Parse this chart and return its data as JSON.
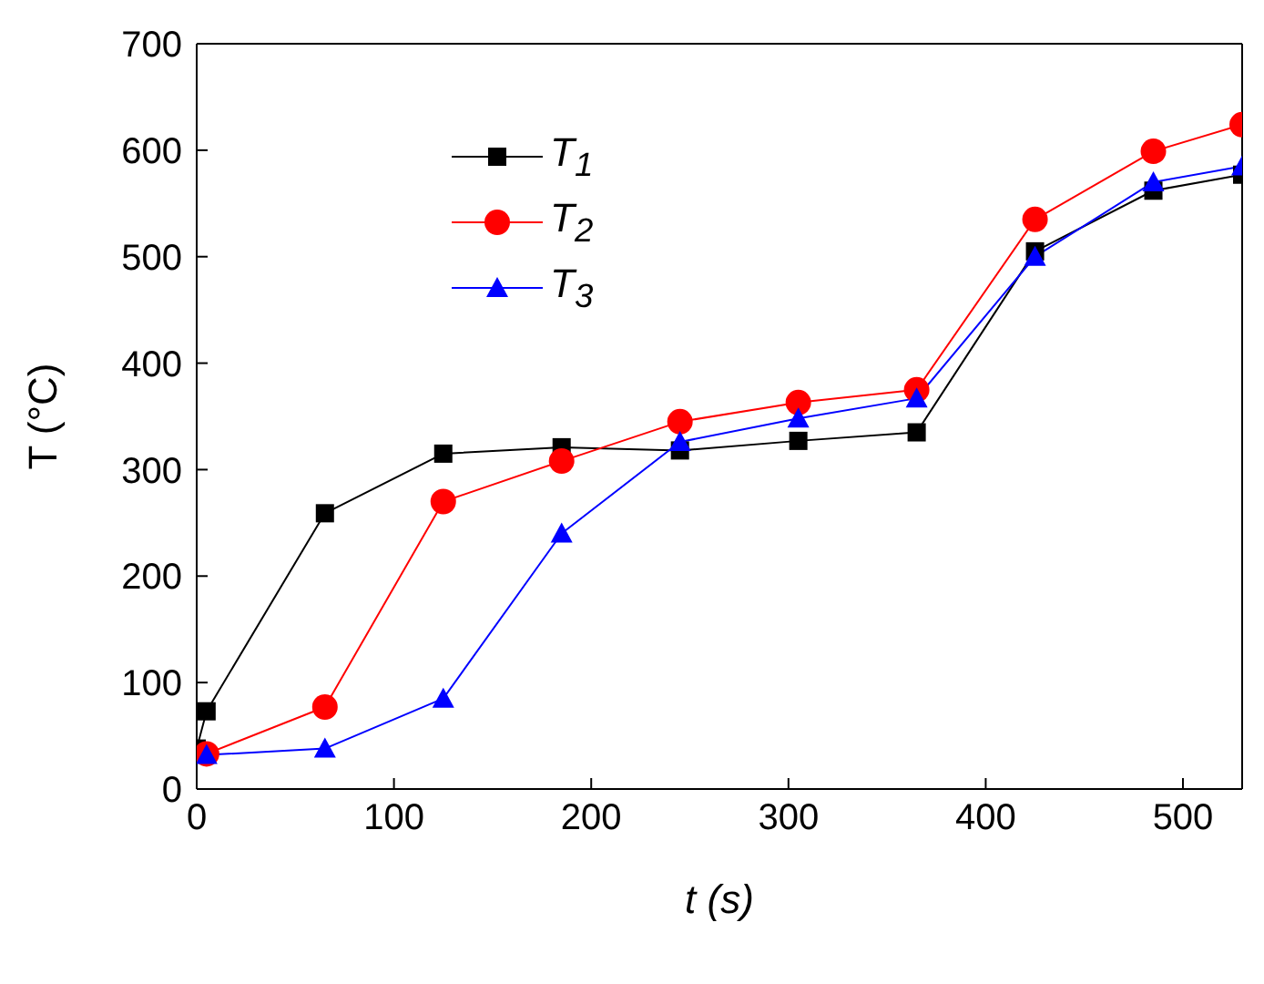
{
  "chart_data": {
    "type": "line",
    "xlabel": "t  (s)",
    "ylabel": "T  (°C)",
    "xlim": [
      0,
      530
    ],
    "xticks": [
      0,
      100,
      200,
      300,
      400,
      500
    ],
    "ylim": [
      0,
      700
    ],
    "yticks": [
      0,
      100,
      200,
      300,
      400,
      500,
      600,
      700
    ],
    "grid": false,
    "legend": "top left",
    "line_style": "solid",
    "series": [
      {
        "name": "T$_{1}$",
        "color": "#000000",
        "marker": "square",
        "x": [
          0,
          5,
          65,
          125,
          185,
          245,
          305,
          365,
          425,
          485,
          530
        ],
        "values": [
          38,
          73,
          259,
          315,
          321,
          318,
          327,
          335,
          505,
          562,
          577
        ]
      },
      {
        "name": "T$_{2}$",
        "color": "#ff0000",
        "marker": "circle",
        "x": [
          5,
          65,
          125,
          185,
          245,
          305,
          365,
          425,
          485,
          530
        ],
        "values": [
          33,
          77,
          270,
          308,
          345,
          363,
          375,
          535,
          599,
          624
        ]
      },
      {
        "name": "T$_{3}$",
        "color": "#0000ff",
        "marker": "triangle",
        "x": [
          5,
          65,
          125,
          185,
          245,
          305,
          365,
          425,
          485,
          530
        ],
        "values": [
          32,
          38,
          85,
          240,
          326,
          348,
          367,
          500,
          570,
          585
        ]
      }
    ]
  }
}
